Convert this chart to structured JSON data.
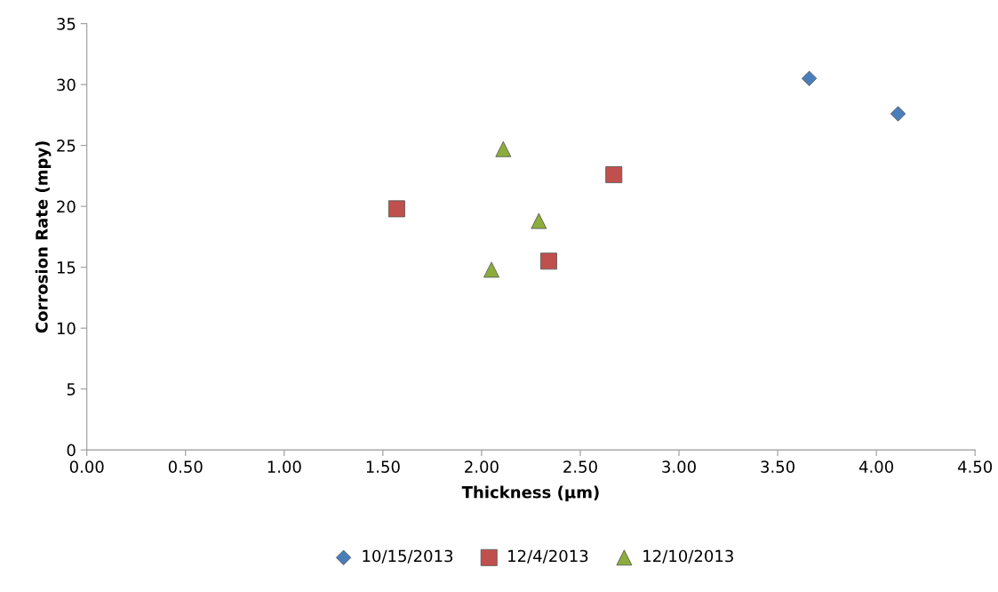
{
  "chart_data": {
    "type": "scatter",
    "xlabel": "Thickness (µm)",
    "ylabel": "Corrosion Rate (mpy)",
    "xlim": [
      0,
      4.5
    ],
    "xticks": [
      {
        "value": 0,
        "label": "0.00"
      },
      {
        "value": 0.5,
        "label": "0.50"
      },
      {
        "value": 1,
        "label": "1.00"
      },
      {
        "value": 1.5,
        "label": "1.50"
      },
      {
        "value": 2,
        "label": "2.00"
      },
      {
        "value": 2.5,
        "label": "2.50"
      },
      {
        "value": 3,
        "label": "3.00"
      },
      {
        "value": 3.5,
        "label": "3.50"
      },
      {
        "value": 4,
        "label": "4.00"
      },
      {
        "value": 4.5,
        "label": "4.50"
      }
    ],
    "ylim": [
      0,
      35
    ],
    "yticks": [
      0,
      5,
      10,
      15,
      20,
      25,
      30,
      35
    ],
    "grid": false,
    "legend": "bottom",
    "series": [
      {
        "name": "10/15/2013",
        "color": "#4a7ebb",
        "marker": "diamond",
        "x": [
          3.66,
          4.11
        ],
        "values": [
          30.5,
          27.6
        ]
      },
      {
        "name": "12/4/2013",
        "color": "#c0504d",
        "marker": "square",
        "x": [
          1.57,
          2.67,
          2.34
        ],
        "values": [
          19.8,
          22.6,
          15.5
        ]
      },
      {
        "name": "12/10/2013",
        "color": "#8cad3c",
        "marker": "triangle",
        "x": [
          2.11,
          2.29,
          2.05
        ],
        "values": [
          24.7,
          18.8,
          14.8
        ]
      }
    ]
  }
}
